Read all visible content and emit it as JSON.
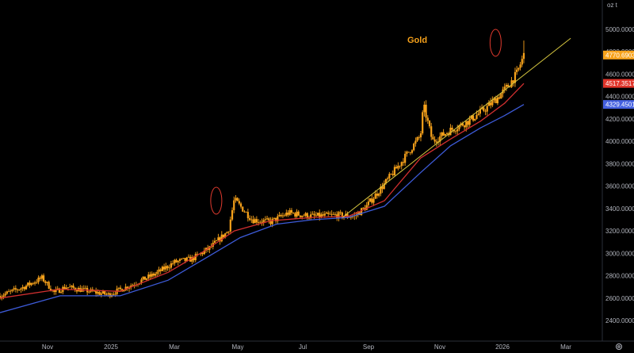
{
  "chart_data": {
    "type": "candlestick",
    "title": "Gold",
    "unit_label": "oz t",
    "ylim": [
      2200,
      5150
    ],
    "yticks": [
      "2400.0000",
      "2600.0000",
      "2800.0000",
      "3000.0000",
      "3200.0000",
      "3400.0000",
      "3600.0000",
      "3800.0000",
      "4000.0000",
      "4200.0000",
      "4400.0000",
      "4600.0000",
      "4800.0000",
      "5000.0000"
    ],
    "xticks": [
      "Nov",
      "2025",
      "Mar",
      "May",
      "Jul",
      "Sep",
      "Nov",
      "2026",
      "Mar"
    ],
    "last_price": "4770.6903",
    "ma_fast_value": "4517.3517",
    "ma_slow_value": "4329.4501",
    "colors": {
      "candle": "#f7a21b",
      "ma_fast": "#d12f2f",
      "ma_slow": "#3d5bd9",
      "trendline": "#d8c840",
      "annotation": "#e03a2e",
      "price_tag": "#f7a21b",
      "ma_fast_tag": "#e0352b",
      "ma_slow_tag": "#4460e0"
    },
    "price_anchors": [
      [
        0,
        2620
      ],
      [
        0.04,
        2700
      ],
      [
        0.07,
        2780
      ],
      [
        0.09,
        2650
      ],
      [
        0.11,
        2700
      ],
      [
        0.15,
        2660
      ],
      [
        0.18,
        2630
      ],
      [
        0.22,
        2720
      ],
      [
        0.26,
        2820
      ],
      [
        0.29,
        2920
      ],
      [
        0.32,
        2950
      ],
      [
        0.35,
        3050
      ],
      [
        0.38,
        3200
      ],
      [
        0.39,
        3480
      ],
      [
        0.42,
        3300
      ],
      [
        0.45,
        3280
      ],
      [
        0.48,
        3360
      ],
      [
        0.52,
        3330
      ],
      [
        0.56,
        3340
      ],
      [
        0.59,
        3330
      ],
      [
        0.61,
        3420
      ],
      [
        0.64,
        3620
      ],
      [
        0.67,
        3830
      ],
      [
        0.7,
        4050
      ],
      [
        0.705,
        4320
      ],
      [
        0.72,
        4000
      ],
      [
        0.75,
        4100
      ],
      [
        0.78,
        4180
      ],
      [
        0.81,
        4300
      ],
      [
        0.83,
        4400
      ],
      [
        0.845,
        4490
      ],
      [
        0.86,
        4600
      ],
      [
        0.872,
        4770
      ]
    ],
    "ma_fast": [
      [
        0,
        2600
      ],
      [
        0.1,
        2680
      ],
      [
        0.2,
        2660
      ],
      [
        0.28,
        2830
      ],
      [
        0.34,
        3020
      ],
      [
        0.39,
        3200
      ],
      [
        0.45,
        3290
      ],
      [
        0.52,
        3320
      ],
      [
        0.58,
        3330
      ],
      [
        0.64,
        3470
      ],
      [
        0.7,
        3850
      ],
      [
        0.75,
        4020
      ],
      [
        0.8,
        4180
      ],
      [
        0.84,
        4340
      ],
      [
        0.872,
        4517
      ]
    ],
    "ma_slow": [
      [
        0,
        2470
      ],
      [
        0.1,
        2620
      ],
      [
        0.2,
        2620
      ],
      [
        0.28,
        2760
      ],
      [
        0.34,
        2950
      ],
      [
        0.4,
        3140
      ],
      [
        0.46,
        3260
      ],
      [
        0.52,
        3300
      ],
      [
        0.58,
        3320
      ],
      [
        0.64,
        3420
      ],
      [
        0.7,
        3720
      ],
      [
        0.75,
        3960
      ],
      [
        0.8,
        4120
      ],
      [
        0.84,
        4230
      ],
      [
        0.872,
        4329
      ]
    ],
    "trendline": [
      [
        0.57,
        3320
      ],
      [
        0.95,
        4920
      ]
    ],
    "annotations": [
      {
        "x": 0.36,
        "y": 3470
      },
      {
        "x": 0.825,
        "y": 4880
      }
    ]
  }
}
